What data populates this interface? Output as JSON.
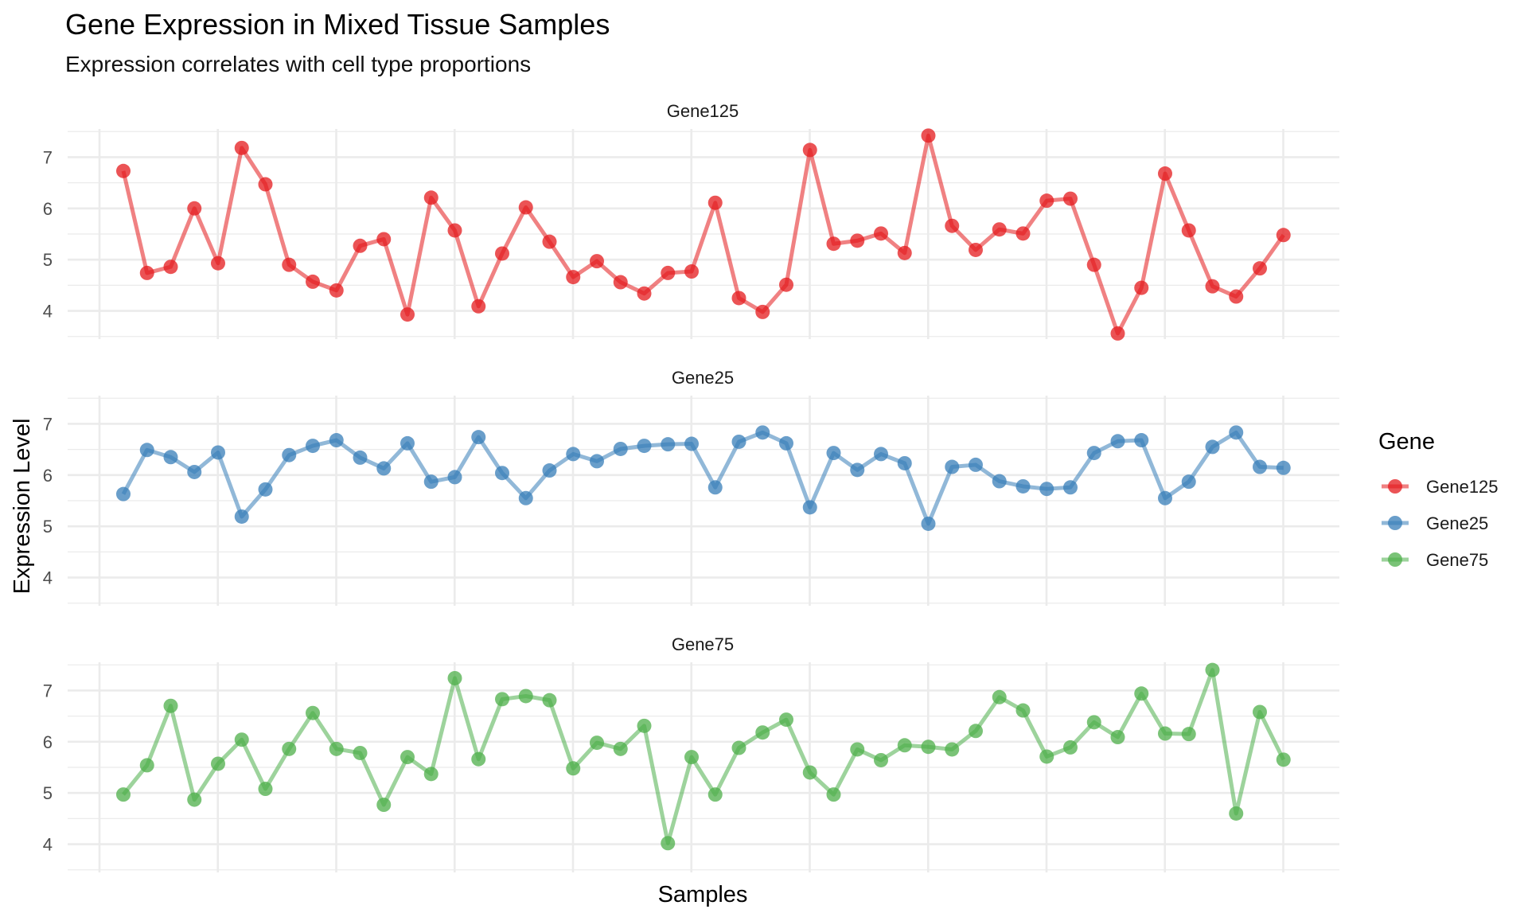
{
  "chart_data": {
    "type": "line",
    "title": "Gene Expression in Mixed Tissue Samples",
    "subtitle": "Expression correlates with cell type proportions",
    "xlabel": "Samples",
    "ylabel": "Expression Level",
    "ylim": [
      3.45,
      7.55
    ],
    "y_ticks": [
      4,
      5,
      6,
      7
    ],
    "grid": true,
    "legend_title": "Gene",
    "legend_position": "right",
    "facets": [
      "Gene125",
      "Gene25",
      "Gene75"
    ],
    "series": [
      {
        "name": "Gene125",
        "color": "#E41A1C",
        "values": [
          6.73,
          4.74,
          4.86,
          6.0,
          4.93,
          7.18,
          6.47,
          4.9,
          4.57,
          4.4,
          5.27,
          5.4,
          3.93,
          6.21,
          5.57,
          4.09,
          5.12,
          6.02,
          5.35,
          4.66,
          4.97,
          4.56,
          4.34,
          4.74,
          4.77,
          6.11,
          4.25,
          3.98,
          4.51,
          7.14,
          5.31,
          5.37,
          5.51,
          5.13,
          7.42,
          5.66,
          5.19,
          5.59,
          5.51,
          6.15,
          6.19,
          4.9,
          3.56,
          4.45,
          6.68,
          5.57,
          4.48,
          4.28,
          4.83,
          5.48
        ]
      },
      {
        "name": "Gene25",
        "color": "#377EB8",
        "values": [
          5.63,
          6.49,
          6.35,
          6.06,
          6.44,
          5.19,
          5.72,
          6.39,
          6.57,
          6.68,
          6.34,
          6.13,
          6.62,
          5.87,
          5.96,
          6.74,
          6.04,
          5.55,
          6.09,
          6.41,
          6.27,
          6.51,
          6.57,
          6.6,
          6.61,
          5.76,
          6.65,
          6.83,
          6.62,
          5.37,
          6.43,
          6.1,
          6.41,
          6.23,
          5.05,
          6.16,
          6.2,
          5.88,
          5.78,
          5.73,
          5.76,
          6.43,
          6.66,
          6.68,
          5.55,
          5.87,
          6.55,
          6.83,
          6.16,
          6.14
        ]
      },
      {
        "name": "Gene75",
        "color": "#4DAF4A",
        "values": [
          4.97,
          5.54,
          6.7,
          4.87,
          5.57,
          6.04,
          5.08,
          5.86,
          6.56,
          5.86,
          5.78,
          4.77,
          5.7,
          5.37,
          7.24,
          5.66,
          6.83,
          6.89,
          6.81,
          5.48,
          5.98,
          5.86,
          6.31,
          4.02,
          5.7,
          4.97,
          5.88,
          6.18,
          6.43,
          5.4,
          4.97,
          5.85,
          5.64,
          5.93,
          5.9,
          5.85,
          6.21,
          6.87,
          6.61,
          5.71,
          5.89,
          6.38,
          6.09,
          6.94,
          6.16,
          6.15,
          7.4,
          4.6,
          6.58,
          5.65
        ]
      }
    ]
  }
}
